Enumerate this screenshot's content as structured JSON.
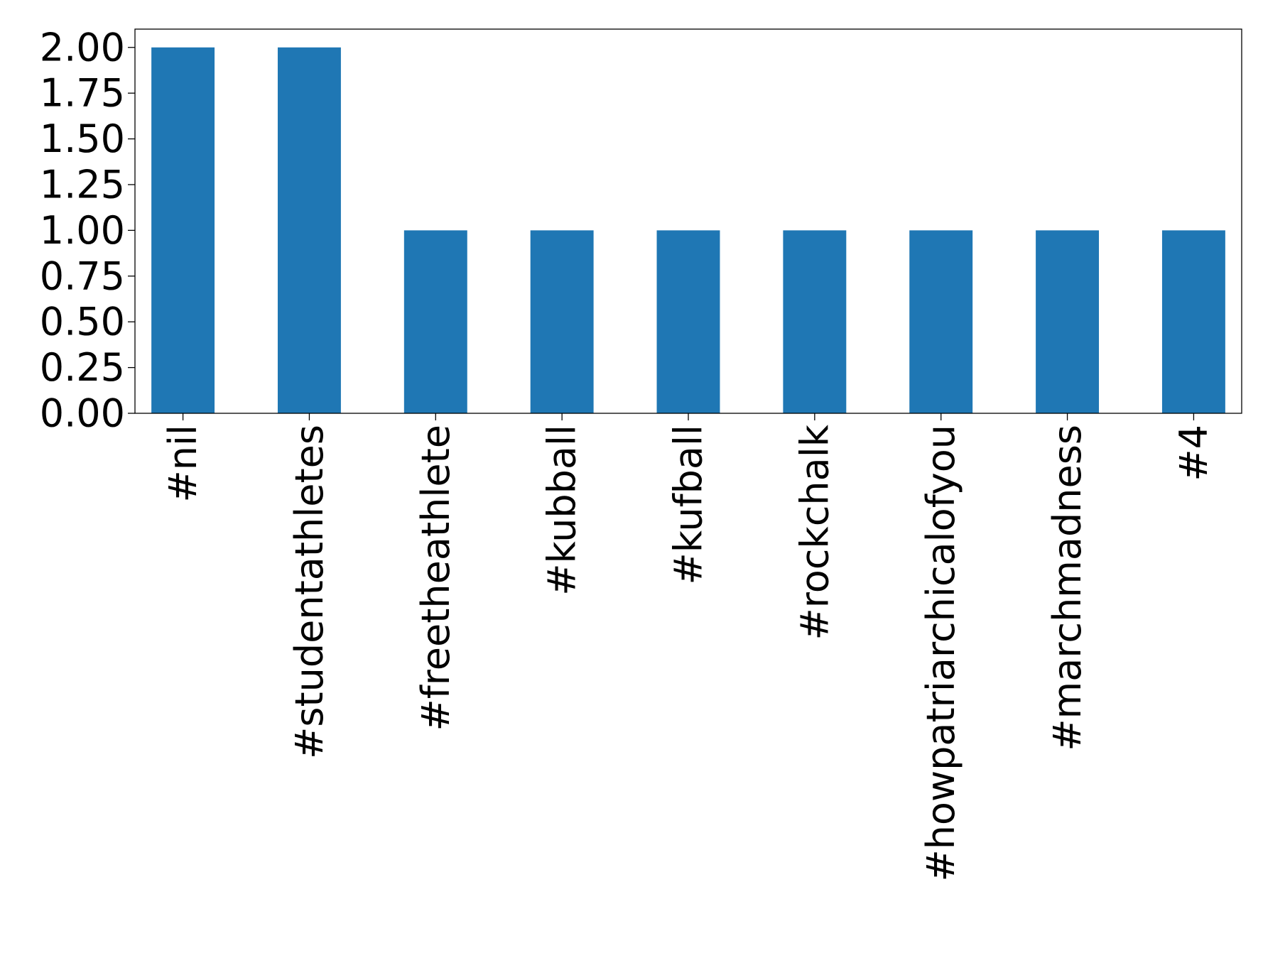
{
  "chart_data": {
    "type": "bar",
    "title": "",
    "xlabel": "",
    "ylabel": "",
    "categories": [
      "#nil",
      "#studentathletes",
      "#freetheathlete",
      "#kubball",
      "#kufball",
      "#rockchalk",
      "#howpatriarchicalofyou",
      "#marchmadness",
      "#4"
    ],
    "values": [
      2,
      2,
      1,
      1,
      1,
      1,
      1,
      1,
      1
    ],
    "ylim": [
      0,
      2.1
    ],
    "yticks": [
      "0.00",
      "0.25",
      "0.50",
      "0.75",
      "1.00",
      "1.25",
      "1.50",
      "1.75",
      "2.00"
    ],
    "bar_color": "#1f77b4",
    "grid": false,
    "legend": "none"
  }
}
